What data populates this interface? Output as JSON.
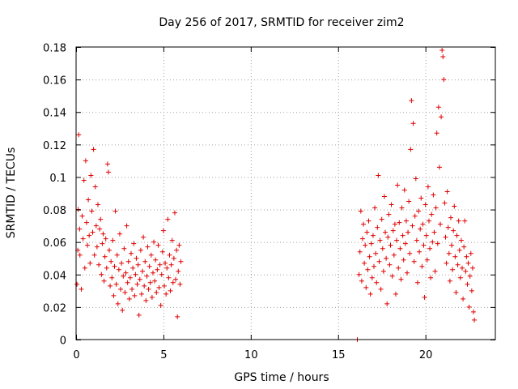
{
  "chart_data": {
    "type": "scatter",
    "title": "Day 256 of 2017, SRMTID for receiver zim2",
    "xlabel": "GPS time / hours",
    "ylabel": "SRMTID / TECUs",
    "xlim": [
      0,
      24
    ],
    "ylim": [
      0,
      0.18
    ],
    "x_ticks": [
      0,
      5,
      10,
      15,
      20
    ],
    "x_tick_labels": [
      "0",
      "5",
      "10",
      "15",
      "20"
    ],
    "y_ticks": [
      0,
      0.02,
      0.04,
      0.06,
      0.08,
      0.1,
      0.12,
      0.14,
      0.16,
      0.18
    ],
    "y_tick_labels": [
      "0",
      "0.02",
      "0.04",
      "0.06",
      "0.08",
      "0.1",
      "0.12",
      "0.14",
      "0.16",
      "0.18"
    ],
    "grid": true,
    "marker": "plus",
    "series": [
      {
        "name": "SRMTID",
        "color": "#e00000",
        "points": [
          [
            0.05,
            0.034
          ],
          [
            0.1,
            0.055
          ],
          [
            0.12,
            0.08
          ],
          [
            0.15,
            0.126
          ],
          [
            0.2,
            0.068
          ],
          [
            0.22,
            0.052
          ],
          [
            0.3,
            0.031
          ],
          [
            0.35,
            0.076
          ],
          [
            0.4,
            0.062
          ],
          [
            0.45,
            0.098
          ],
          [
            0.5,
            0.044
          ],
          [
            0.55,
            0.11
          ],
          [
            0.6,
            0.072
          ],
          [
            0.65,
            0.058
          ],
          [
            0.7,
            0.086
          ],
          [
            0.75,
            0.064
          ],
          [
            0.8,
            0.047
          ],
          [
            0.85,
            0.101
          ],
          [
            0.9,
            0.079
          ],
          [
            0.95,
            0.066
          ],
          [
            1.0,
            0.117
          ],
          [
            1.05,
            0.052
          ],
          [
            1.1,
            0.094
          ],
          [
            1.15,
            0.07
          ],
          [
            1.2,
            0.057
          ],
          [
            1.25,
            0.083
          ],
          [
            1.3,
            0.046
          ],
          [
            1.35,
            0.068
          ],
          [
            1.4,
            0.074
          ],
          [
            1.45,
            0.04
          ],
          [
            1.5,
            0.059
          ],
          [
            1.55,
            0.065
          ],
          [
            1.6,
            0.036
          ],
          [
            1.65,
            0.051
          ],
          [
            1.7,
            0.062
          ],
          [
            1.75,
            0.044
          ],
          [
            1.8,
            0.108
          ],
          [
            1.85,
            0.103
          ],
          [
            1.9,
            0.055
          ],
          [
            1.95,
            0.033
          ],
          [
            2.0,
            0.048
          ],
          [
            2.05,
            0.038
          ],
          [
            2.1,
            0.061
          ],
          [
            2.15,
            0.027
          ],
          [
            2.2,
            0.045
          ],
          [
            2.25,
            0.079
          ],
          [
            2.3,
            0.034
          ],
          [
            2.35,
            0.052
          ],
          [
            2.4,
            0.022
          ],
          [
            2.45,
            0.043
          ],
          [
            2.5,
            0.065
          ],
          [
            2.55,
            0.031
          ],
          [
            2.6,
            0.047
          ],
          [
            2.65,
            0.018
          ],
          [
            2.7,
            0.039
          ],
          [
            2.75,
            0.056
          ],
          [
            2.8,
            0.029
          ],
          [
            2.85,
            0.041
          ],
          [
            2.9,
            0.07
          ],
          [
            2.95,
            0.035
          ],
          [
            3.0,
            0.048
          ],
          [
            3.05,
            0.025
          ],
          [
            3.1,
            0.038
          ],
          [
            3.15,
            0.053
          ],
          [
            3.2,
            0.031
          ],
          [
            3.25,
            0.044
          ],
          [
            3.3,
            0.059
          ],
          [
            3.35,
            0.027
          ],
          [
            3.4,
            0.04
          ],
          [
            3.45,
            0.05
          ],
          [
            3.5,
            0.034
          ],
          [
            3.55,
            0.046
          ],
          [
            3.6,
            0.015
          ],
          [
            3.65,
            0.037
          ],
          [
            3.7,
            0.055
          ],
          [
            3.75,
            0.028
          ],
          [
            3.8,
            0.042
          ],
          [
            3.85,
            0.063
          ],
          [
            3.9,
            0.033
          ],
          [
            3.95,
            0.048
          ],
          [
            4.0,
            0.024
          ],
          [
            4.05,
            0.039
          ],
          [
            4.1,
            0.057
          ],
          [
            4.15,
            0.031
          ],
          [
            4.2,
            0.045
          ],
          [
            4.25,
            0.035
          ],
          [
            4.3,
            0.052
          ],
          [
            4.35,
            0.026
          ],
          [
            4.4,
            0.041
          ],
          [
            4.45,
            0.06
          ],
          [
            4.5,
            0.036
          ],
          [
            4.55,
            0.049
          ],
          [
            4.6,
            0.029
          ],
          [
            4.65,
            0.043
          ],
          [
            4.7,
            0.058
          ],
          [
            4.75,
            0.032
          ],
          [
            4.8,
            0.046
          ],
          [
            4.85,
            0.021
          ],
          [
            4.9,
            0.04
          ],
          [
            4.95,
            0.054
          ],
          [
            5.0,
            0.067
          ],
          [
            5.05,
            0.033
          ],
          [
            5.1,
            0.047
          ],
          [
            5.15,
            0.028
          ],
          [
            5.2,
            0.044
          ],
          [
            5.25,
            0.074
          ],
          [
            5.3,
            0.038
          ],
          [
            5.35,
            0.052
          ],
          [
            5.4,
            0.03
          ],
          [
            5.45,
            0.046
          ],
          [
            5.5,
            0.061
          ],
          [
            5.55,
            0.035
          ],
          [
            5.6,
            0.05
          ],
          [
            5.65,
            0.078
          ],
          [
            5.7,
            0.037
          ],
          [
            5.75,
            0.055
          ],
          [
            5.8,
            0.014
          ],
          [
            5.85,
            0.042
          ],
          [
            5.9,
            0.058
          ],
          [
            5.95,
            0.034
          ],
          [
            6.0,
            0.048
          ],
          [
            16.1,
            0.0
          ],
          [
            16.2,
            0.04
          ],
          [
            16.25,
            0.054
          ],
          [
            16.3,
            0.079
          ],
          [
            16.35,
            0.036
          ],
          [
            16.4,
            0.062
          ],
          [
            16.45,
            0.071
          ],
          [
            16.5,
            0.047
          ],
          [
            16.55,
            0.058
          ],
          [
            16.6,
            0.032
          ],
          [
            16.65,
            0.066
          ],
          [
            16.7,
            0.043
          ],
          [
            16.75,
            0.073
          ],
          [
            16.8,
            0.051
          ],
          [
            16.85,
            0.028
          ],
          [
            16.9,
            0.059
          ],
          [
            16.95,
            0.038
          ],
          [
            17.0,
            0.064
          ],
          [
            17.05,
            0.045
          ],
          [
            17.1,
            0.081
          ],
          [
            17.15,
            0.053
          ],
          [
            17.2,
            0.035
          ],
          [
            17.25,
            0.069
          ],
          [
            17.3,
            0.101
          ],
          [
            17.35,
            0.048
          ],
          [
            17.4,
            0.061
          ],
          [
            17.45,
            0.031
          ],
          [
            17.5,
            0.074
          ],
          [
            17.55,
            0.056
          ],
          [
            17.6,
            0.042
          ],
          [
            17.65,
            0.088
          ],
          [
            17.7,
            0.066
          ],
          [
            17.75,
            0.05
          ],
          [
            17.8,
            0.022
          ],
          [
            17.85,
            0.063
          ],
          [
            17.9,
            0.077
          ],
          [
            17.95,
            0.046
          ],
          [
            18.0,
            0.058
          ],
          [
            18.05,
            0.083
          ],
          [
            18.1,
            0.039
          ],
          [
            18.15,
            0.067
          ],
          [
            18.2,
            0.052
          ],
          [
            18.25,
            0.071
          ],
          [
            18.3,
            0.028
          ],
          [
            18.35,
            0.061
          ],
          [
            18.4,
            0.095
          ],
          [
            18.45,
            0.044
          ],
          [
            18.5,
            0.072
          ],
          [
            18.55,
            0.056
          ],
          [
            18.6,
            0.037
          ],
          [
            18.65,
            0.081
          ],
          [
            18.7,
            0.064
          ],
          [
            18.75,
            0.049
          ],
          [
            18.8,
            0.092
          ],
          [
            18.85,
            0.059
          ],
          [
            18.9,
            0.073
          ],
          [
            18.95,
            0.041
          ],
          [
            19.0,
            0.066
          ],
          [
            19.05,
            0.085
          ],
          [
            19.1,
            0.053
          ],
          [
            19.15,
            0.117
          ],
          [
            19.2,
            0.147
          ],
          [
            19.25,
            0.07
          ],
          [
            19.3,
            0.133
          ],
          [
            19.35,
            0.048
          ],
          [
            19.4,
            0.076
          ],
          [
            19.45,
            0.099
          ],
          [
            19.5,
            0.061
          ],
          [
            19.55,
            0.035
          ],
          [
            19.6,
            0.079
          ],
          [
            19.65,
            0.054
          ],
          [
            19.7,
            0.068
          ],
          [
            19.75,
            0.087
          ],
          [
            19.8,
            0.045
          ],
          [
            19.85,
            0.071
          ],
          [
            19.9,
            0.058
          ],
          [
            19.95,
            0.026
          ],
          [
            20.0,
            0.083
          ],
          [
            20.05,
            0.064
          ],
          [
            20.1,
            0.049
          ],
          [
            20.15,
            0.094
          ],
          [
            20.2,
            0.073
          ],
          [
            20.25,
            0.056
          ],
          [
            20.3,
            0.038
          ],
          [
            20.35,
            0.077
          ],
          [
            20.4,
            0.06
          ],
          [
            20.45,
            0.089
          ],
          [
            20.5,
            0.066
          ],
          [
            20.55,
            0.042
          ],
          [
            20.6,
            0.081
          ],
          [
            20.65,
            0.127
          ],
          [
            20.7,
            0.059
          ],
          [
            20.75,
            0.143
          ],
          [
            20.8,
            0.106
          ],
          [
            20.85,
            0.071
          ],
          [
            20.9,
            0.137
          ],
          [
            20.95,
            0.178
          ],
          [
            21.0,
            0.174
          ],
          [
            21.05,
            0.16
          ],
          [
            21.1,
            0.084
          ],
          [
            21.15,
            0.063
          ],
          [
            21.2,
            0.047
          ],
          [
            21.25,
            0.091
          ],
          [
            21.3,
            0.069
          ],
          [
            21.35,
            0.053
          ],
          [
            21.4,
            0.036
          ],
          [
            21.45,
            0.075
          ],
          [
            21.5,
            0.058
          ],
          [
            21.55,
            0.043
          ],
          [
            21.6,
            0.067
          ],
          [
            21.65,
            0.082
          ],
          [
            21.7,
            0.051
          ],
          [
            21.75,
            0.029
          ],
          [
            21.8,
            0.064
          ],
          [
            21.85,
            0.046
          ],
          [
            21.9,
            0.073
          ],
          [
            21.95,
            0.055
          ],
          [
            22.0,
            0.038
          ],
          [
            22.05,
            0.061
          ],
          [
            22.1,
            0.044
          ],
          [
            22.15,
            0.025
          ],
          [
            22.2,
            0.057
          ],
          [
            22.25,
            0.073
          ],
          [
            22.3,
            0.042
          ],
          [
            22.35,
            0.051
          ],
          [
            22.4,
            0.034
          ],
          [
            22.45,
            0.047
          ],
          [
            22.5,
            0.02
          ],
          [
            22.55,
            0.039
          ],
          [
            22.6,
            0.053
          ],
          [
            22.65,
            0.03
          ],
          [
            22.7,
            0.044
          ],
          [
            22.75,
            0.017
          ],
          [
            22.8,
            0.012
          ]
        ]
      }
    ]
  }
}
